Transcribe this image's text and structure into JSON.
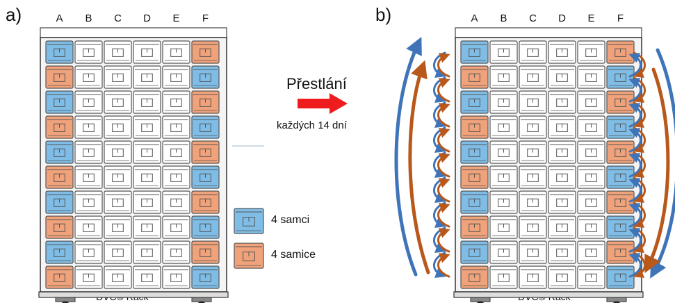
{
  "panel_a": {
    "label": "a)",
    "columns": [
      "A",
      "B",
      "C",
      "D",
      "E",
      "F"
    ],
    "rows": 10,
    "col_a_pattern": [
      "blue",
      "orange",
      "blue",
      "orange",
      "blue",
      "orange",
      "blue",
      "orange",
      "blue",
      "orange"
    ],
    "col_f_pattern": [
      "orange",
      "blue",
      "orange",
      "blue",
      "orange",
      "blue",
      "orange",
      "blue",
      "orange",
      "blue"
    ],
    "rack_label": "DVC® Rack"
  },
  "panel_b": {
    "label": "b)",
    "columns": [
      "A",
      "B",
      "C",
      "D",
      "E",
      "F"
    ],
    "rows": 10,
    "col_a_pattern": [
      "blue",
      "orange",
      "blue",
      "orange",
      "blue",
      "orange",
      "blue",
      "orange",
      "blue",
      "orange"
    ],
    "col_f_pattern": [
      "orange",
      "blue",
      "orange",
      "blue",
      "orange",
      "blue",
      "orange",
      "blue",
      "orange",
      "blue"
    ],
    "rack_label": "DVC® Rack"
  },
  "middle": {
    "title": "Přestlání",
    "subtitle": "každých 14 dní"
  },
  "legend": {
    "male_label": "4 samci",
    "female_label": "4 samice"
  },
  "colors": {
    "blue_cage": "#7fbde6",
    "orange_cage": "#f0a27a",
    "white_cage": "#ffffff",
    "cage_outline": "#555555",
    "blue_arrow": "#3f74b8",
    "orange_arrow": "#b8581a",
    "red_arrow": "#ee1c1c"
  }
}
